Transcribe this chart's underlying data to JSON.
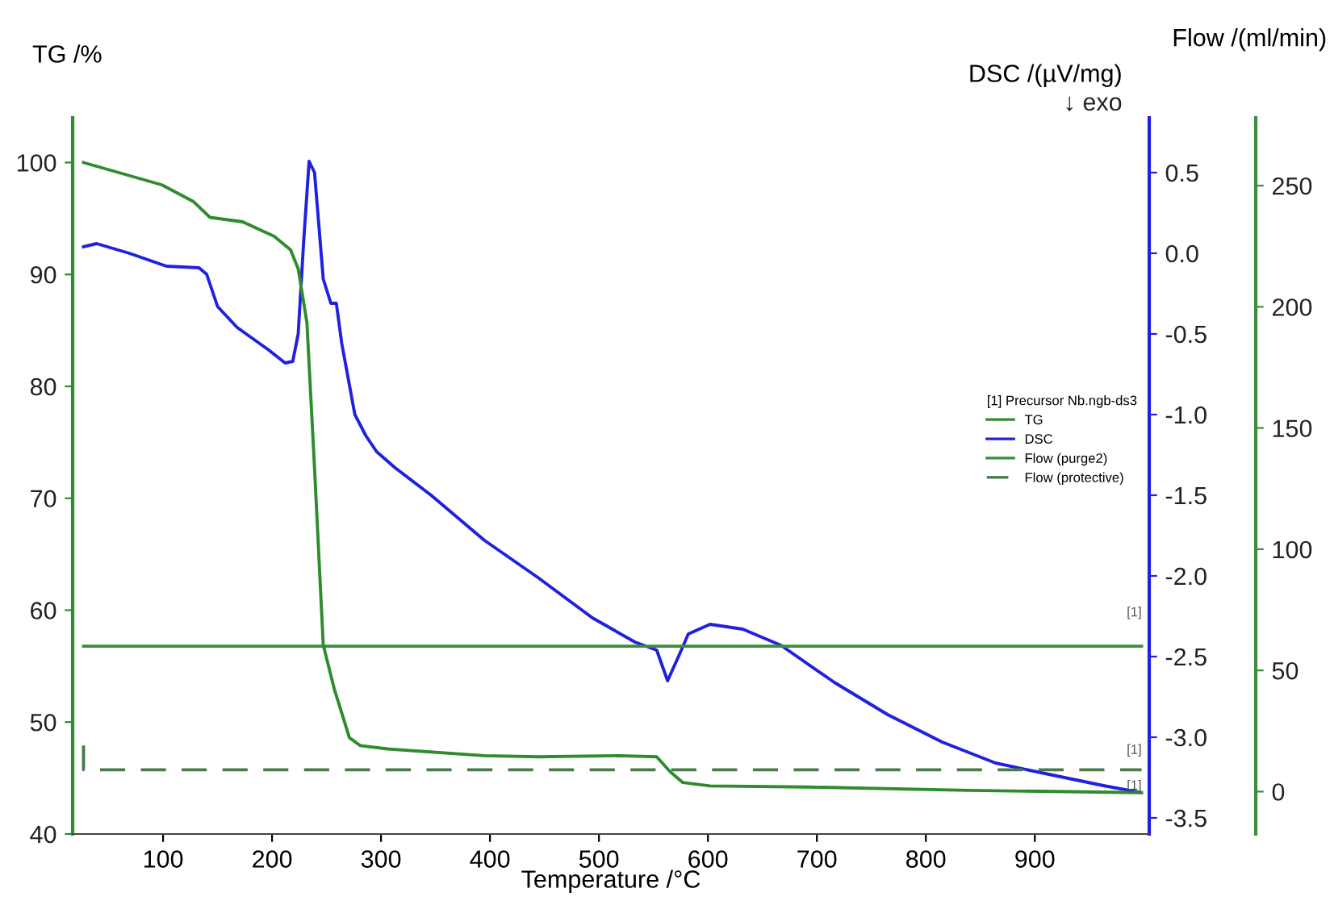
{
  "chart_data": {
    "type": "line",
    "xlabel": "Temperature /°C",
    "ylabel": "TG /%",
    "y2label": "DSC /(µV/mg)",
    "y3label": "Flow /(ml/min)",
    "legend_title": "[1] Precursor Nb.ngb-ds3",
    "legend": "center right",
    "grid": false,
    "marker": "none",
    "line_style": "solid",
    "xlim": [
      17,
      1005
    ],
    "xticks": [
      100,
      200,
      300,
      400,
      500,
      600,
      700,
      800,
      900
    ],
    "ylim": [
      40,
      104
    ],
    "yticks": [
      40,
      50,
      60,
      70,
      80,
      90,
      100
    ],
    "y2lim": [
      -3.6,
      0.84
    ],
    "y2ticks": [
      {
        "value": -3.5,
        "label": "-3.5"
      },
      {
        "value": -3.0,
        "label": "-3.0"
      },
      {
        "value": -2.5,
        "label": "-2.5"
      },
      {
        "value": -2.0,
        "label": "-2.0"
      },
      {
        "value": -1.5,
        "label": "-1.5"
      },
      {
        "value": -1.0,
        "label": "-1.0"
      },
      {
        "value": -0.5,
        "label": "-0.5"
      },
      {
        "value": 0.0,
        "label": "0.0"
      },
      {
        "value": 0.5,
        "label": "0.5"
      }
    ],
    "y3lim": [
      -17.5,
      278
    ],
    "y3ticks": [
      0,
      50,
      100,
      150,
      200,
      250
    ],
    "annotations": [
      "↓ exo",
      "[1]",
      "[1]",
      "[1]"
    ],
    "series": [
      {
        "name": "TG",
        "color": "#2e8b2e",
        "x": [
          27,
          99,
          128,
          143,
          173,
          202,
          217,
          224,
          232,
          239,
          247,
          257,
          271,
          281,
          306,
          395,
          444,
          518,
          553,
          565,
          577,
          602,
          691,
          839,
          998
        ],
        "values": [
          100,
          98,
          96.5,
          95.1,
          94.7,
          93.4,
          92.2,
          90.5,
          85.7,
          72.7,
          56.9,
          53,
          48.6,
          47.9,
          47.6,
          47.0,
          46.9,
          47.0,
          46.9,
          45.6,
          44.6,
          44.3,
          44.2,
          43.9,
          43.7
        ]
      },
      {
        "name": "DSC",
        "color": "#2020e0",
        "axis": "y2",
        "x": [
          27,
          39,
          69,
          103,
          133,
          140,
          150,
          168,
          197,
          212,
          219,
          224,
          229,
          234,
          239,
          247,
          254,
          259,
          264,
          276,
          286,
          296,
          313,
          346,
          395,
          444,
          494,
          533,
          553,
          563,
          573,
          582,
          602,
          632,
          667,
          716,
          765,
          815,
          864,
          913,
          963,
          995
        ],
        "values": [
          0.04,
          0.06,
          0.0,
          -0.08,
          -0.09,
          -0.13,
          -0.33,
          -0.46,
          -0.6,
          -0.68,
          -0.67,
          -0.5,
          0.07,
          0.57,
          0.5,
          -0.16,
          -0.31,
          -0.31,
          -0.56,
          -1.0,
          -1.13,
          -1.23,
          -1.33,
          -1.5,
          -1.78,
          -2.01,
          -2.26,
          -2.41,
          -2.46,
          -2.65,
          -2.5,
          -2.36,
          -2.3,
          -2.33,
          -2.43,
          -2.66,
          -2.86,
          -3.03,
          -3.16,
          -3.23,
          -3.3,
          -3.34
        ]
      },
      {
        "name": "Flow (purge2)",
        "color": "#3c8c3c",
        "axis": "y3",
        "x": [
          27,
          998
        ],
        "values": [
          60,
          60
        ]
      },
      {
        "name": "Flow (protective)",
        "color": "#4a7a4a",
        "axis": "y3",
        "line_style": "dashed",
        "x": [
          27,
          27,
          998
        ],
        "values": [
          19,
          9,
          9
        ]
      }
    ]
  }
}
